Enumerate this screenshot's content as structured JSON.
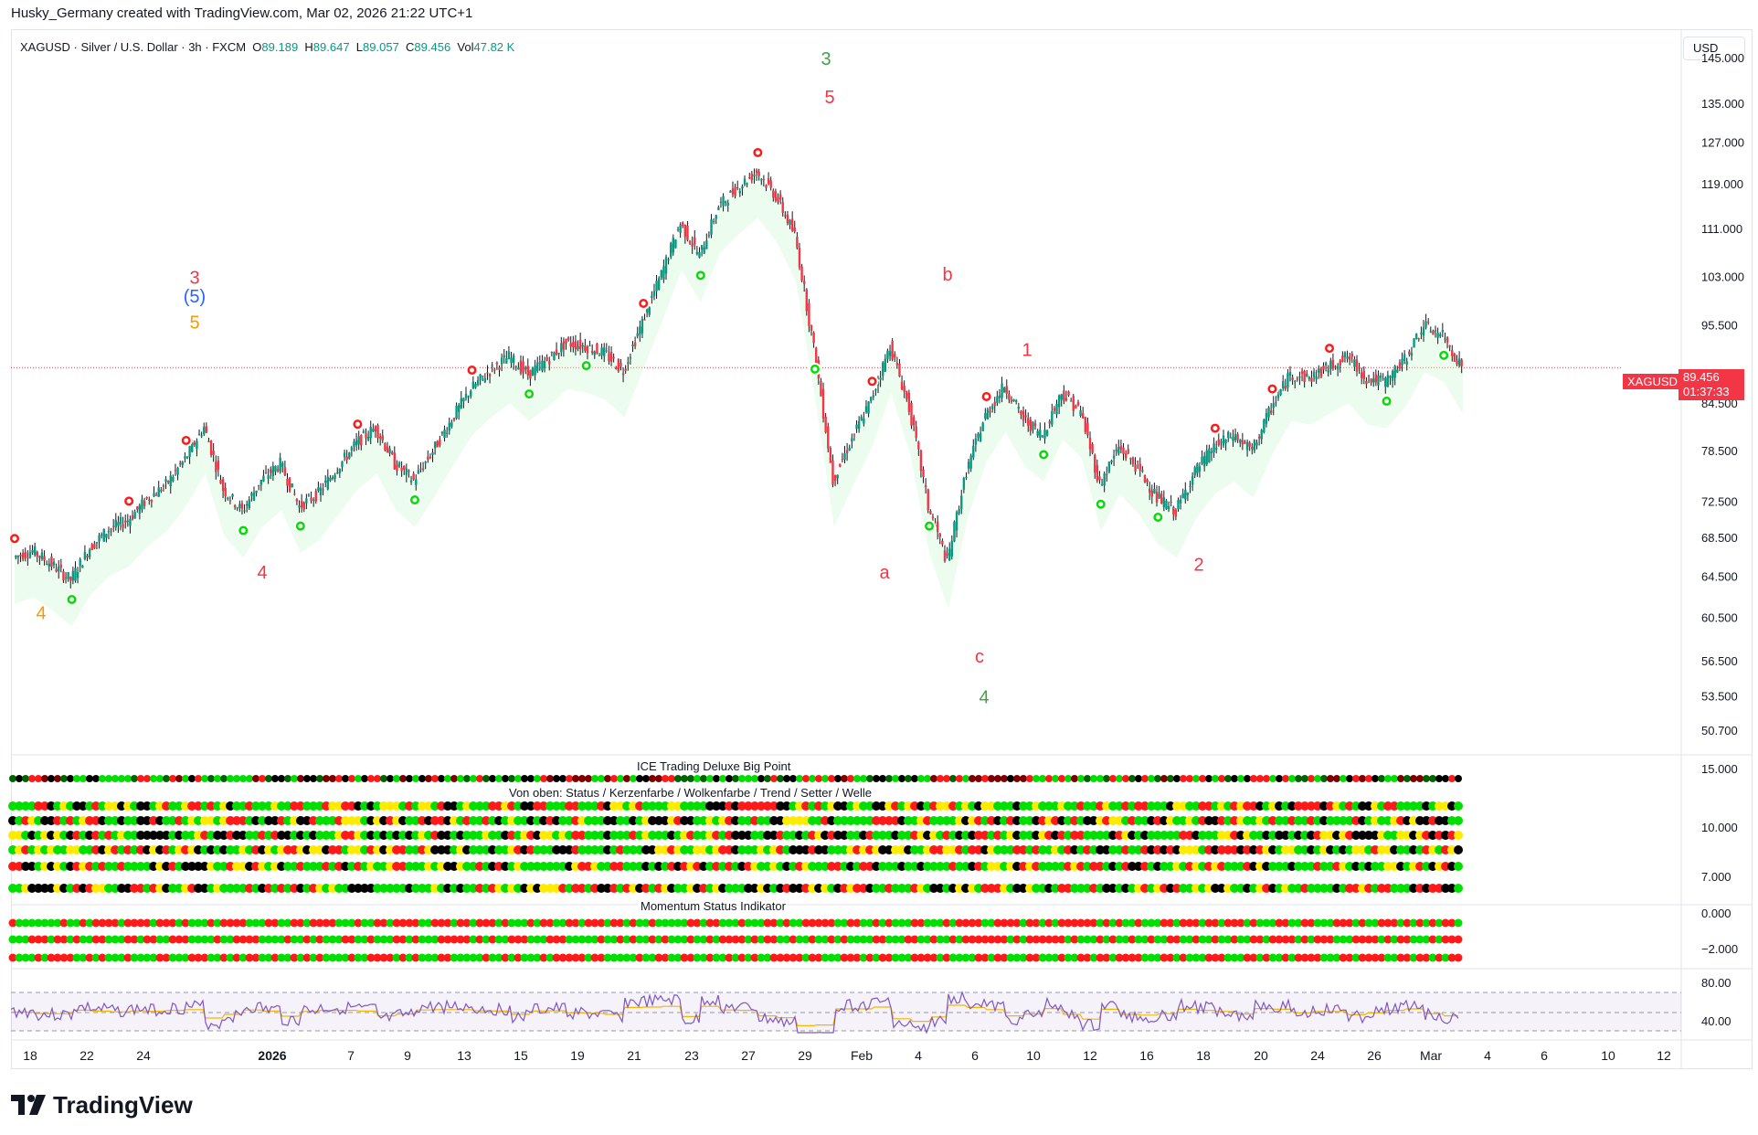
{
  "caption": "Husky_Germany created with TradingView.com, Mar 02, 2026 21:22 UTC+1",
  "symbol": {
    "title": "XAGUSD · Silver / U.S. Dollar · 3h · FXCM",
    "o_label": "O",
    "o": "89.189",
    "h_label": "H",
    "h": "89.647",
    "l_label": "L",
    "l": "89.057",
    "c_label": "C",
    "c": "89.456",
    "vol_label": "Vol",
    "vol": "47.82 K"
  },
  "currency_button": "USD",
  "price_tag": {
    "symbol": "XAGUSD",
    "price": "89.456",
    "countdown": "01:37:33"
  },
  "panels": {
    "big_point": "ICE Trading Deluxe Big Point",
    "status": "Von oben: Status / Kerzenfarbe / Wolkenfarbe / Trend / Setter / Welle",
    "momentum": "Momentum Status Indikator"
  },
  "logo": {
    "text": "TradingView"
  },
  "colors": {
    "up": "#089981",
    "down": "#f23645",
    "signal_green": "#00e000",
    "signal_red": "#ff1a1a",
    "rsi": "#7e57c2",
    "rsi_ma": "#f7b500"
  },
  "chart_data": {
    "type": "candlestick",
    "symbol": "XAGUSD",
    "interval": "3h",
    "y_ticks": [
      145.0,
      135.0,
      127.0,
      119.0,
      111.0,
      103.0,
      95.5,
      84.5,
      78.5,
      72.5,
      68.5,
      64.5,
      60.5,
      56.5,
      53.5,
      50.7
    ],
    "y_tick_labels": [
      "145.000",
      "135.000",
      "127.000",
      "119.000",
      "111.000",
      "103.000",
      "95.500",
      "84.500",
      "78.500",
      "72.500",
      "68.500",
      "64.500",
      "60.500",
      "56.500",
      "53.500",
      "50.700"
    ],
    "ylim": [
      49,
      150
    ],
    "y_scale": "log",
    "x_tick_labels": [
      "18",
      "22",
      "24",
      "2026",
      "7",
      "9",
      "13",
      "15",
      "19",
      "21",
      "23",
      "27",
      "29",
      "Feb",
      "4",
      "6",
      "10",
      "12",
      "16",
      "18",
      "20",
      "24",
      "26",
      "Mar",
      "4",
      "6",
      "10",
      "12"
    ],
    "price_path": [
      [
        0,
        66.5
      ],
      [
        1,
        67.2
      ],
      [
        2,
        65.8
      ],
      [
        3,
        64.2
      ],
      [
        4,
        67.5
      ],
      [
        5,
        69.5
      ],
      [
        6,
        70.5
      ],
      [
        7,
        72.8
      ],
      [
        8,
        74.5
      ],
      [
        9,
        77.5
      ],
      [
        10,
        81.5
      ],
      [
        11,
        74.0
      ],
      [
        12,
        71.5
      ],
      [
        13,
        75.0
      ],
      [
        14,
        77.0
      ],
      [
        15,
        72.0
      ],
      [
        16,
        73.5
      ],
      [
        17,
        76.5
      ],
      [
        18,
        79.5
      ],
      [
        19,
        81.5
      ],
      [
        20,
        77.0
      ],
      [
        21,
        75.0
      ],
      [
        22,
        78.5
      ],
      [
        23,
        82.5
      ],
      [
        24,
        86.5
      ],
      [
        25,
        89.0
      ],
      [
        26,
        91.0
      ],
      [
        27,
        88.5
      ],
      [
        28,
        90.5
      ],
      [
        29,
        93.0
      ],
      [
        30,
        92.5
      ],
      [
        31,
        91.5
      ],
      [
        32,
        89.0
      ],
      [
        33,
        96.0
      ],
      [
        34,
        103.5
      ],
      [
        35,
        112.0
      ],
      [
        36,
        106.5
      ],
      [
        37,
        115.0
      ],
      [
        38,
        118.5
      ],
      [
        39,
        121.5
      ],
      [
        40,
        117.0
      ],
      [
        41,
        110.0
      ],
      [
        42,
        92.0
      ],
      [
        43,
        75.0
      ],
      [
        44,
        80.0
      ],
      [
        45,
        85.0
      ],
      [
        46,
        92.5
      ],
      [
        47,
        84.0
      ],
      [
        48,
        72.0
      ],
      [
        49,
        66.0
      ],
      [
        50,
        76.0
      ],
      [
        51,
        83.0
      ],
      [
        52,
        87.0
      ],
      [
        53,
        82.5
      ],
      [
        54,
        80.5
      ],
      [
        55,
        86.0
      ],
      [
        56,
        83.5
      ],
      [
        57,
        74.5
      ],
      [
        58,
        79.0
      ],
      [
        59,
        76.5
      ],
      [
        60,
        73.0
      ],
      [
        61,
        71.5
      ],
      [
        62,
        76.0
      ],
      [
        63,
        79.0
      ],
      [
        64,
        80.5
      ],
      [
        65,
        78.5
      ],
      [
        66,
        84.0
      ],
      [
        67,
        88.5
      ],
      [
        68,
        88.0
      ],
      [
        69,
        89.5
      ],
      [
        70,
        91.0
      ],
      [
        71,
        88.0
      ],
      [
        72,
        87.5
      ],
      [
        73,
        90.5
      ],
      [
        74,
        95.5
      ],
      [
        75,
        94.0
      ],
      [
        76,
        89.5
      ]
    ],
    "wave_labels": [
      {
        "text": "4",
        "price": 61.0,
        "color": "#ff9800"
      },
      {
        "text": "3",
        "price": 103.0,
        "color": "#f23645"
      },
      {
        "text": "(5)",
        "price": 100.0,
        "color": "#2962ff"
      },
      {
        "text": "5",
        "price": 96.0,
        "color": "#ff9800"
      },
      {
        "text": "4",
        "price": 65.0,
        "color": "#f23645"
      },
      {
        "text": "3",
        "price": 145.0,
        "color": "#43a047"
      },
      {
        "text": "5",
        "price": 136.5,
        "color": "#f23645"
      },
      {
        "text": "b",
        "price": 103.5,
        "color": "#f23645"
      },
      {
        "text": "a",
        "price": 65.0,
        "color": "#f23645"
      },
      {
        "text": "1",
        "price": 92.0,
        "color": "#f23645"
      },
      {
        "text": "c",
        "price": 57.0,
        "color": "#f23645"
      },
      {
        "text": "4",
        "price": 53.5,
        "color": "#43a047"
      },
      {
        "text": "2",
        "price": 65.8,
        "color": "#f23645"
      }
    ],
    "rsi": {
      "ylabels": [
        "80.00",
        "40.00"
      ],
      "upper": 70,
      "lower": 30
    },
    "sub_y_labels": {
      "big_point": [
        "15.000"
      ],
      "status": [
        "10.000",
        "7.000"
      ],
      "momentum": [
        "0.000",
        "−2.000"
      ]
    }
  }
}
